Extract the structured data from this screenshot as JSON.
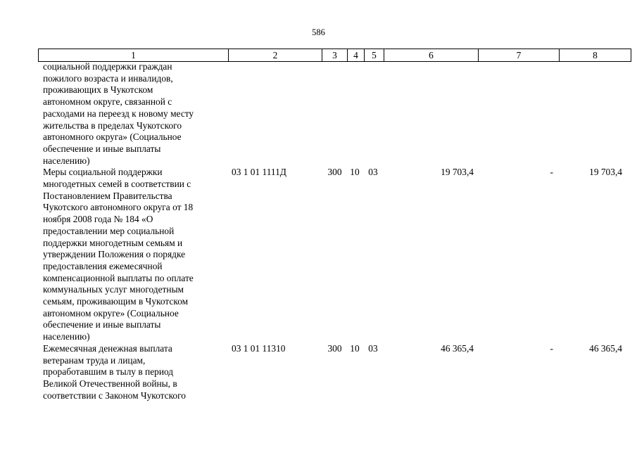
{
  "page_number": "586",
  "columns": [
    "1",
    "2",
    "3",
    "4",
    "5",
    "6",
    "7",
    "8"
  ],
  "rows": [
    {
      "description_lines": [
        "социальной поддержки граждан",
        "пожилого возраста и инвалидов,",
        "проживающих в Чукотском",
        "автономном округе, связанной с",
        "расходами на переезд к новому месту",
        "жительства в пределах Чукотского",
        "автономного округа» (Социальное",
        "обеспечение и иные выплаты",
        "населению)"
      ],
      "code": "",
      "c3": "",
      "c4": "",
      "c5": "",
      "c6": "",
      "c7": "",
      "c8": ""
    },
    {
      "description_lines": [
        "Меры социальной поддержки",
        "многодетных семей в соответствии с",
        "Постановлением Правительства",
        "Чукотского автономного округа от 18",
        "ноября 2008 года № 184 «О",
        "предоставлении мер социальной",
        "поддержки многодетным семьям и",
        "утверждении Положения о порядке",
        "предоставления ежемесячной",
        "компенсационной выплаты по оплате",
        "коммунальных услуг многодетным",
        "семьям, проживающим в Чукотском",
        "автономном округе» (Социальное",
        "обеспечение и иные выплаты",
        "населению)"
      ],
      "code": "03 1 01 1111Д",
      "c3": "300",
      "c4": "10",
      "c5": "03",
      "c6": "19 703,4",
      "c7": "-",
      "c8": "19 703,4"
    },
    {
      "description_lines": [
        "Ежемесячная денежная выплата",
        "ветеранам труда и лицам,",
        "проработавшим в тылу в период",
        "Великой Отечественной войны, в",
        "соответствии с Законом Чукотского"
      ],
      "code": "03 1 01 11310",
      "c3": "300",
      "c4": "10",
      "c5": "03",
      "c6": "46 365,4",
      "c7": "-",
      "c8": "46 365,4"
    }
  ]
}
